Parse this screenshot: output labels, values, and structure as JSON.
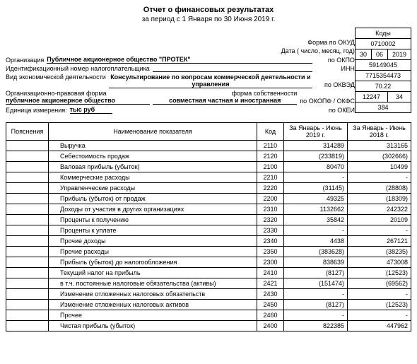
{
  "header": {
    "title": "Отчет о финансовых результатах",
    "period": "за период с 1 Января по 30 Июня 2019 г."
  },
  "codes": {
    "codes_label": "Коды",
    "form_okud_label": "Форма по ОКУД",
    "form_okud": "0710002",
    "date_label": "Дата ( число, месяц, год)",
    "date_d": "30",
    "date_m": "06",
    "date_y": "2019",
    "org_label": "Организация",
    "org_value": "Публичное акционерное общество \"ПРОТЕК\"",
    "okpo_label": "по ОКПО",
    "okpo": "59149045",
    "inn_label": "Идентификационный номер налогоплательщика",
    "inn_r": "ИНН",
    "inn": "7715354473",
    "activity_label": "Вид экономической деятельности",
    "activity_value": "Консультирование по вопросам коммерческой деятельности и управления",
    "okved_label": "по ОКВЭД",
    "okved": "70.22",
    "opform_label": "Организационно-правовая форма",
    "opform_label2": "форма собственности",
    "opform_value1": "публичное акционерное общество",
    "opform_value2": "совместная частная и иностранная",
    "okopf_label": "по ОКОПФ / ОКФС",
    "okopf1": "12247",
    "okopf2": "34",
    "unit_label": "Единица измерения:",
    "unit_value": "тыс руб",
    "okei_label": "по ОКЕИ",
    "okei": "384"
  },
  "table": {
    "h1": "Пояснения",
    "h2": "Наименование показателя",
    "h3": "Код",
    "h4": "За Январь - Июнь 2019 г.",
    "h5": "За Январь - Июнь 2018 г.",
    "rows": [
      {
        "name": "Выручка",
        "code": "2110",
        "v1": "314289",
        "v2": "313165"
      },
      {
        "name": "Себестоимость продаж",
        "code": "2120",
        "v1": "(233819)",
        "v2": "(302666)"
      },
      {
        "name": "Валовая прибыль (убыток)",
        "code": "2100",
        "v1": "80470",
        "v2": "10499"
      },
      {
        "name": "Коммерческие расходы",
        "code": "2210",
        "v1": "-",
        "v2": "-"
      },
      {
        "name": "Управленческие расходы",
        "code": "2220",
        "v1": "(31145)",
        "v2": "(28808)"
      },
      {
        "name": "Прибыль (убыток) от продаж",
        "code": "2200",
        "v1": "49325",
        "v2": "(18309)"
      },
      {
        "name": "Доходы от участия в других организациях",
        "code": "2310",
        "v1": "1132662",
        "v2": "242322"
      },
      {
        "name": "Проценты к получению",
        "code": "2320",
        "v1": "35842",
        "v2": "20109"
      },
      {
        "name": "Проценты к уплате",
        "code": "2330",
        "v1": "-",
        "v2": "-"
      },
      {
        "name": "Прочие доходы",
        "code": "2340",
        "v1": "4438",
        "v2": "267121"
      },
      {
        "name": "Прочие расходы",
        "code": "2350",
        "v1": "(383628)",
        "v2": "(38235)"
      },
      {
        "name": "Прибыль (убыток) до налогообложения",
        "code": "2300",
        "v1": "838639",
        "v2": "473008"
      },
      {
        "name": "Текущий налог на прибыль",
        "code": "2410",
        "v1": "(8127)",
        "v2": "(12523)"
      },
      {
        "name": "в т.ч. постоянные налоговые обязательства (активы)",
        "code": "2421",
        "v1": "(151474)",
        "v2": "(69562)"
      },
      {
        "name": "Изменение отложенных налоговых обязательств",
        "code": "2430",
        "v1": "-",
        "v2": "-"
      },
      {
        "name": "Изменение отложенных налоговых активов",
        "code": "2450",
        "v1": "(8127)",
        "v2": "(12523)"
      },
      {
        "name": "Прочее",
        "code": "2460",
        "v1": "-",
        "v2": "-"
      },
      {
        "name": "Чистая прибыль (убыток)",
        "code": "2400",
        "v1": "822385",
        "v2": "447962"
      }
    ]
  }
}
